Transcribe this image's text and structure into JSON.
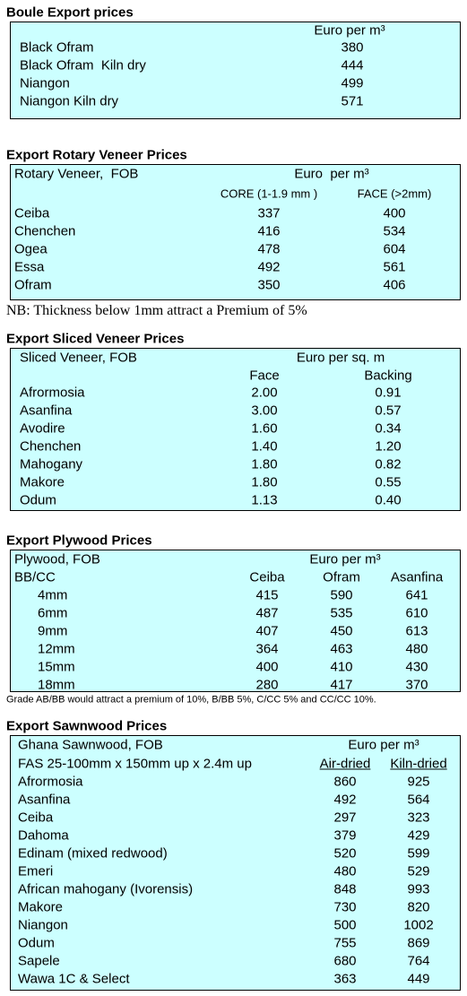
{
  "sections": [
    {
      "title": "Boule Export prices",
      "unit": "Euro per m³",
      "rows": [
        [
          "Black Ofram",
          "380"
        ],
        [
          "Black Ofram  Kiln dry",
          "444"
        ],
        [
          "Niangon",
          "499"
        ],
        [
          "Niangon Kiln dry",
          "571"
        ]
      ]
    },
    {
      "title": "Export Rotary Veneer Prices",
      "caption": "Rotary Veneer,  FOB",
      "unit": "Euro  per m³",
      "columns": [
        "CORE (1-1.9 mm )",
        "FACE (>2mm)"
      ],
      "rows": [
        [
          "Ceiba",
          "337",
          "400"
        ],
        [
          "Chenchen",
          "416",
          "534"
        ],
        [
          "Ogea",
          "478",
          "604"
        ],
        [
          "Essa",
          "492",
          "561"
        ],
        [
          "Ofram",
          "350",
          "406"
        ]
      ],
      "note": "NB: Thickness below 1mm attract a Premium of 5%"
    },
    {
      "title": "Export Sliced Veneer Prices",
      "caption": "Sliced Veneer, FOB",
      "unit": "Euro per sq. m",
      "columns": [
        "Face",
        "Backing"
      ],
      "rows": [
        [
          "Afrormosia",
          "2.00",
          "0.91"
        ],
        [
          "Asanfina",
          "3.00",
          "0.57"
        ],
        [
          "Avodire",
          "1.60",
          "0.34"
        ],
        [
          "Chenchen",
          "1.40",
          "1.20"
        ],
        [
          "Mahogany",
          "1.80",
          "0.82"
        ],
        [
          "Makore",
          "1.80",
          "0.55"
        ],
        [
          "Odum",
          "1.13",
          "0.40"
        ]
      ]
    },
    {
      "title": "Export Plywood Prices",
      "caption": "Plywood, FOB",
      "unit": "Euro per m³",
      "row_header": "BB/CC",
      "columns": [
        "Ceiba",
        "Ofram",
        "Asanfina"
      ],
      "rows": [
        [
          "4mm",
          "415",
          "590",
          "641"
        ],
        [
          "6mm",
          "487",
          "535",
          "610"
        ],
        [
          "9mm",
          "407",
          "450",
          "613"
        ],
        [
          "12mm",
          "364",
          "463",
          "480"
        ],
        [
          "15mm",
          "400",
          "410",
          "430"
        ],
        [
          "18mm",
          "280",
          "417",
          "370"
        ]
      ],
      "note": "Grade AB/BB would attract a premium of 10%, B/BB 5%, C/CC 5% and CC/CC 10%."
    },
    {
      "title": "Export Sawnwood Prices",
      "caption": "Ghana Sawnwood, FOB",
      "unit": "Euro per m³",
      "row_header": "FAS 25-100mm x 150mm up x 2.4m up",
      "columns": [
        "Air-dried",
        "Kiln-dried"
      ],
      "rows": [
        [
          "Afrormosia",
          "860",
          "925"
        ],
        [
          "Asanfina",
          "492",
          "564"
        ],
        [
          "Ceiba",
          "297",
          "323"
        ],
        [
          "Dahoma",
          "379",
          "429"
        ],
        [
          "Edinam (mixed redwood)",
          "520",
          "599"
        ],
        [
          "Emeri",
          "480",
          "529"
        ],
        [
          "African mahogany (Ivorensis)",
          "848",
          "993"
        ],
        [
          "Makore",
          "730",
          "820"
        ],
        [
          "Niangon",
          "500",
          "1002"
        ],
        [
          "Odum",
          "755",
          "869"
        ],
        [
          "Sapele",
          "680",
          "764"
        ],
        [
          "Wawa 1C & Select",
          "363",
          "449"
        ]
      ]
    }
  ]
}
